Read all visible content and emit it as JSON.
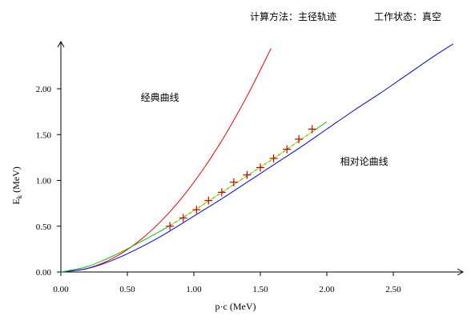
{
  "header": {
    "method_label": "计算方法：主径轨迹",
    "state_label": "工作状态：真空"
  },
  "chart_data": {
    "type": "line",
    "title": "",
    "xlabel": "p·c (MeV)",
    "ylabel_main": "E",
    "ylabel_sub": "k",
    "ylabel_unit": " (MeV)",
    "xlim": [
      0,
      3.0
    ],
    "ylim": [
      0,
      2.5
    ],
    "xticks": [
      {
        "value": 0,
        "label": "0.00"
      },
      {
        "value": 0.5,
        "label": "0.50"
      },
      {
        "value": 1.0,
        "label": "1.00"
      },
      {
        "value": 1.5,
        "label": "1.50"
      },
      {
        "value": 2.0,
        "label": "2.00"
      },
      {
        "value": 2.5,
        "label": "2.50"
      }
    ],
    "yticks": [
      {
        "value": 0,
        "label": "0.00"
      },
      {
        "value": 0.5,
        "label": "0.50"
      },
      {
        "value": 1.0,
        "label": "1.00"
      },
      {
        "value": 1.5,
        "label": "1.50"
      },
      {
        "value": 2.0,
        "label": "2.00"
      }
    ],
    "series": [
      {
        "name": "经典曲线",
        "color": "#ff0000",
        "style": "solid",
        "x": [
          0,
          0.2,
          0.4,
          0.6,
          0.8,
          1.0,
          1.2,
          1.4,
          1.58
        ],
        "y": [
          0,
          0.039,
          0.157,
          0.352,
          0.626,
          0.979,
          1.41,
          1.92,
          2.44
        ]
      },
      {
        "name": "相对论曲线",
        "color": "#0000ff",
        "style": "solid",
        "x": [
          0,
          0.2,
          0.4,
          0.6,
          0.8,
          1.0,
          1.2,
          1.4,
          1.6,
          1.8,
          2.0,
          2.2,
          2.4,
          2.6,
          2.8,
          2.95
        ],
        "y": [
          0,
          0.038,
          0.135,
          0.27,
          0.43,
          0.61,
          0.79,
          0.98,
          1.17,
          1.36,
          1.56,
          1.76,
          1.95,
          2.15,
          2.35,
          2.49
        ]
      },
      {
        "name": "",
        "color": "#00cc00",
        "style": "solid",
        "x": [
          0,
          0.2,
          0.4,
          0.6,
          0.8,
          1.0,
          1.2,
          1.4,
          1.6,
          1.8,
          2.0
        ],
        "y": [
          0,
          0.06,
          0.18,
          0.33,
          0.49,
          0.67,
          0.86,
          1.05,
          1.24,
          1.44,
          1.64
        ]
      },
      {
        "name": "",
        "color": "#ffd700",
        "style": "dashed",
        "x": [
          0.8,
          1.0,
          1.2,
          1.4,
          1.6,
          1.8,
          1.9
        ],
        "y": [
          0.49,
          0.67,
          0.86,
          1.05,
          1.24,
          1.44,
          1.54
        ]
      }
    ],
    "markers": {
      "color": "#cc0000",
      "shape": "plus",
      "x": [
        0.82,
        0.92,
        1.02,
        1.11,
        1.21,
        1.3,
        1.4,
        1.5,
        1.6,
        1.7,
        1.79,
        1.89
      ],
      "y": [
        0.5,
        0.59,
        0.68,
        0.78,
        0.87,
        0.98,
        1.06,
        1.14,
        1.24,
        1.34,
        1.45,
        1.56
      ]
    },
    "annotations": [
      {
        "text": "经典曲线",
        "x": 0.6,
        "y": 1.87
      },
      {
        "text": "相对论曲线",
        "x": 2.1,
        "y": 1.17
      }
    ]
  }
}
